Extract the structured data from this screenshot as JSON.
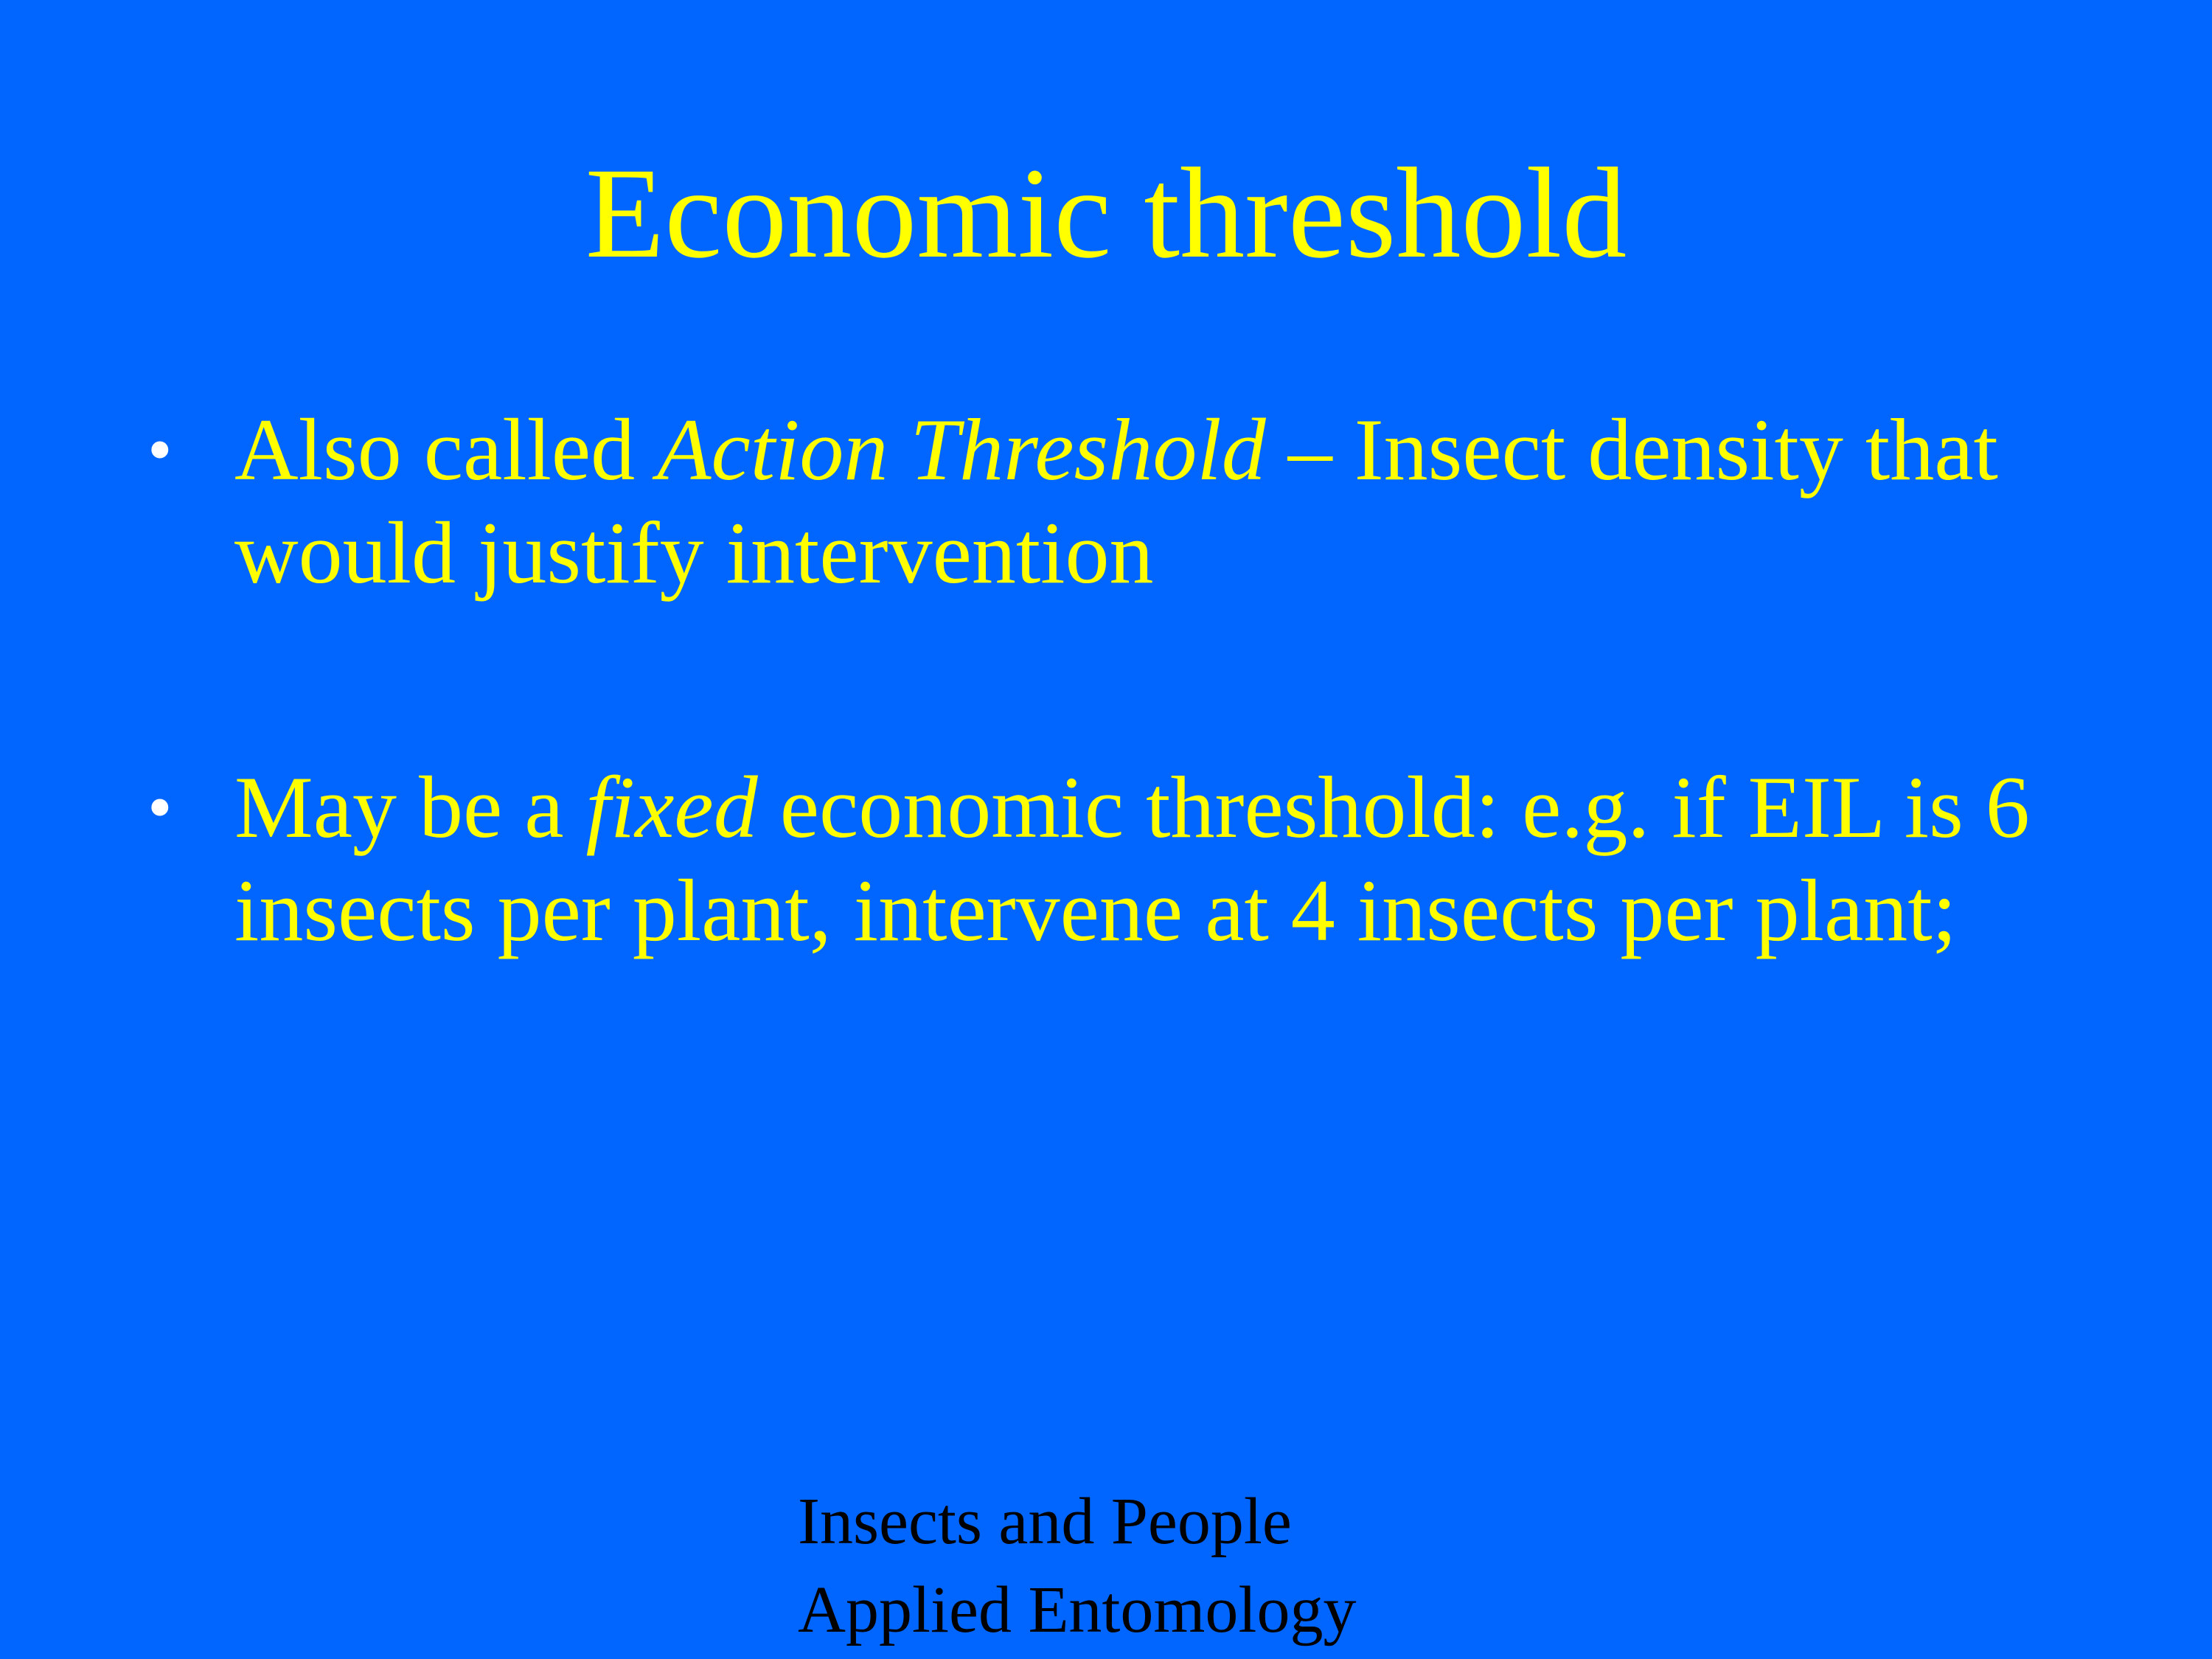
{
  "slide": {
    "title": "Economic threshold",
    "bullet_symbol": "•",
    "bullets": [
      {
        "part1": "Also called ",
        "italic1": "Action Threshold",
        "part2": " – Insect density that would justify intervention"
      },
      {
        "part1": "May be a ",
        "italic1": "fixed",
        "part2": " economic threshold: e.g. if EIL is 6 insects per plant, intervene at 4 insects per plant;"
      }
    ],
    "footer": {
      "line1": "Insects and People",
      "line2": "Applied Entomology"
    },
    "colors": {
      "background": "#0066ff",
      "text": "#ffff00",
      "bullet": "#ffffff",
      "footer": "#000000"
    }
  }
}
